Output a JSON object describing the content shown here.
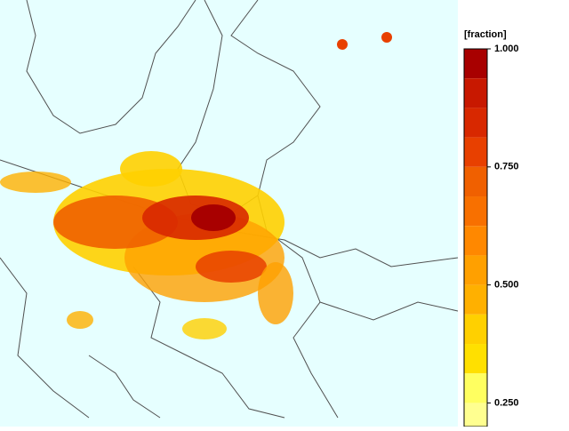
{
  "colorbar": {
    "label": "[fraction]",
    "lim": [
      0.2,
      1.0
    ],
    "ticks": [
      {
        "value": 1.0,
        "label": "1.000"
      },
      {
        "value": 0.75,
        "label": "0.750"
      },
      {
        "value": 0.5,
        "label": "0.500"
      },
      {
        "value": 0.25,
        "label": "0.250"
      }
    ],
    "bins": [
      1.0,
      0.9375,
      0.875,
      0.8125,
      0.75,
      0.6875,
      0.625,
      0.5625,
      0.5,
      0.4375,
      0.375,
      0.3125,
      0.25,
      0.2
    ],
    "colors": [
      "#a80000",
      "#c81800",
      "#d82800",
      "#e84000",
      "#f06000",
      "#f87000",
      "#ff8800",
      "#ffa000",
      "#ffb000",
      "#ffd000",
      "#ffe000",
      "#ffff60",
      "#ffff90"
    ]
  }
}
